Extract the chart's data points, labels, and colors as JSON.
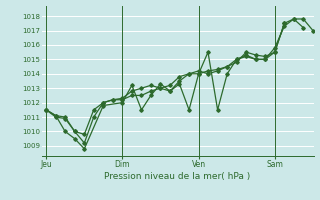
{
  "background_color": "#cce8e8",
  "grid_color": "#ffffff",
  "line_color": "#2d6a2d",
  "marker_color": "#2d6a2d",
  "title": "Pression niveau de la mer( hPa )",
  "ylim": [
    1008.3,
    1018.7
  ],
  "yticks": [
    1009,
    1010,
    1011,
    1012,
    1013,
    1014,
    1015,
    1016,
    1017,
    1018
  ],
  "day_labels": [
    "Jeu",
    "Dim",
    "Ven",
    "Sam"
  ],
  "day_positions": [
    0.0,
    0.333,
    0.667,
    1.0
  ],
  "xlim": [
    -0.02,
    1.17
  ],
  "series1_x": [
    0.0,
    0.042,
    0.083,
    0.125,
    0.167,
    0.208,
    0.25,
    0.292,
    0.333,
    0.375,
    0.417,
    0.458,
    0.5,
    0.542,
    0.583,
    0.625,
    0.667,
    0.708,
    0.75,
    0.792,
    0.833,
    0.875,
    0.917,
    0.958,
    1.0,
    1.042,
    1.083,
    1.125,
    1.167
  ],
  "series1_y": [
    1011.5,
    1011.1,
    1011.0,
    1010.0,
    1009.8,
    1011.5,
    1012.0,
    1012.2,
    1012.2,
    1012.5,
    1012.5,
    1012.8,
    1013.0,
    1013.2,
    1013.8,
    1014.0,
    1014.0,
    1014.2,
    1014.3,
    1014.5,
    1015.0,
    1015.2,
    1015.0,
    1015.0,
    1015.8,
    1017.3,
    1017.8,
    1017.8,
    1017.0
  ],
  "series2_x": [
    0.0,
    0.042,
    0.083,
    0.125,
    0.167,
    0.25,
    0.333,
    0.375,
    0.417,
    0.458,
    0.5,
    0.542,
    0.583,
    0.625,
    0.667,
    0.708,
    0.75,
    0.792,
    0.833,
    0.875,
    0.917,
    0.958,
    1.0,
    1.042,
    1.083,
    1.125
  ],
  "series2_y": [
    1011.5,
    1011.1,
    1010.0,
    1009.5,
    1008.8,
    1011.8,
    1012.0,
    1013.2,
    1011.5,
    1012.5,
    1013.3,
    1012.8,
    1013.3,
    1011.5,
    1014.0,
    1015.5,
    1011.5,
    1014.0,
    1015.0,
    1015.3,
    1015.0,
    1015.0,
    1015.5,
    1017.5,
    1017.8,
    1017.2
  ],
  "series3_x": [
    0.0,
    0.042,
    0.083,
    0.125,
    0.167,
    0.208,
    0.25,
    0.292,
    0.333,
    0.375,
    0.417,
    0.458,
    0.5,
    0.542,
    0.583,
    0.625,
    0.667,
    0.708,
    0.75,
    0.792,
    0.833,
    0.875,
    0.917,
    0.958,
    1.0,
    1.042
  ],
  "series3_y": [
    1011.5,
    1011.0,
    1010.9,
    1010.0,
    1009.2,
    1011.0,
    1012.0,
    1012.2,
    1012.3,
    1012.8,
    1013.0,
    1013.2,
    1013.0,
    1012.8,
    1013.5,
    1014.0,
    1014.2,
    1014.0,
    1014.2,
    1014.5,
    1014.8,
    1015.5,
    1015.3,
    1015.2,
    1015.5,
    1017.5
  ]
}
